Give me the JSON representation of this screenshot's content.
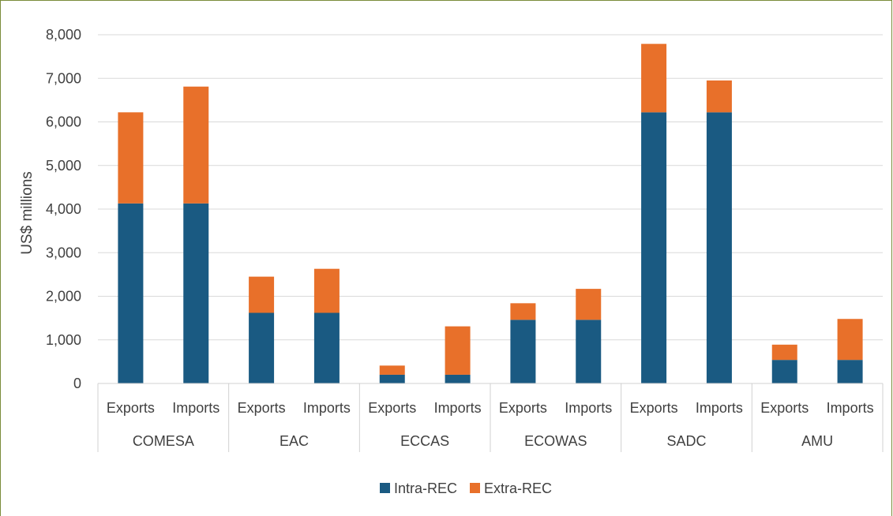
{
  "chart_data": {
    "type": "bar",
    "stacked": true,
    "ylabel": "US$ millions",
    "ylim": [
      0,
      8000
    ],
    "yticks": [
      "0",
      "1,000",
      "2,000",
      "3,000",
      "4,000",
      "5,000",
      "6,000",
      "7,000",
      "8,000"
    ],
    "groups": [
      {
        "name": "COMESA",
        "bars": [
          {
            "label": "Exports",
            "intra": 4130,
            "extra": 2090
          },
          {
            "label": "Imports",
            "intra": 4130,
            "extra": 2680
          }
        ]
      },
      {
        "name": "EAC",
        "bars": [
          {
            "label": "Exports",
            "intra": 1620,
            "extra": 830
          },
          {
            "label": "Imports",
            "intra": 1620,
            "extra": 1010
          }
        ]
      },
      {
        "name": "ECCAS",
        "bars": [
          {
            "label": "Exports",
            "intra": 200,
            "extra": 210
          },
          {
            "label": "Imports",
            "intra": 200,
            "extra": 1110
          }
        ]
      },
      {
        "name": "ECOWAS",
        "bars": [
          {
            "label": "Exports",
            "intra": 1460,
            "extra": 380
          },
          {
            "label": "Imports",
            "intra": 1460,
            "extra": 710
          }
        ]
      },
      {
        "name": "SADC",
        "bars": [
          {
            "label": "Exports",
            "intra": 6220,
            "extra": 1570
          },
          {
            "label": "Imports",
            "intra": 6220,
            "extra": 730
          }
        ]
      },
      {
        "name": "AMU",
        "bars": [
          {
            "label": "Exports",
            "intra": 540,
            "extra": 350
          },
          {
            "label": "Imports",
            "intra": 540,
            "extra": 940
          }
        ]
      }
    ],
    "series": [
      {
        "name": "Intra-REC",
        "key": "intra",
        "color": "#1a5a82"
      },
      {
        "name": "Extra-REC",
        "key": "extra",
        "color": "#e8702a"
      }
    ],
    "grid": true,
    "legend": "bottom"
  }
}
